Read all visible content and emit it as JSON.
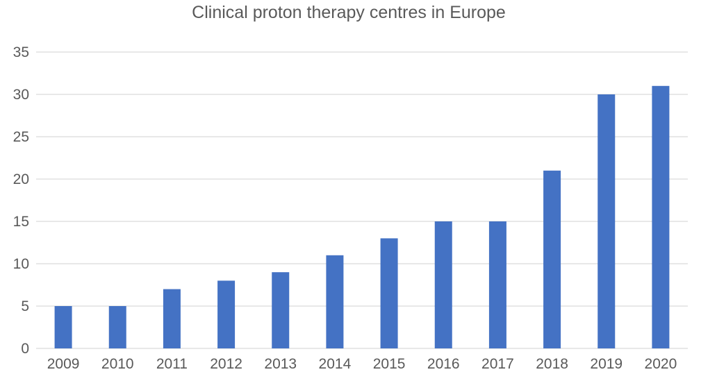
{
  "chart_data": {
    "type": "bar",
    "title": "Clinical proton therapy centres  in Europe",
    "xlabel": "",
    "ylabel": "",
    "categories": [
      "2009",
      "2010",
      "2011",
      "2012",
      "2013",
      "2014",
      "2015",
      "2016",
      "2017",
      "2018",
      "2019",
      "2020"
    ],
    "values": [
      5,
      5,
      7,
      8,
      9,
      11,
      13,
      15,
      15,
      21,
      30,
      31
    ],
    "ylim": [
      0,
      35
    ],
    "yticks": [
      0,
      5,
      10,
      15,
      20,
      25,
      30,
      35
    ],
    "grid": true,
    "legend": "none",
    "bar_color": "#4472C4",
    "grid_color": "#D9D9D9",
    "text_color": "#595959"
  }
}
